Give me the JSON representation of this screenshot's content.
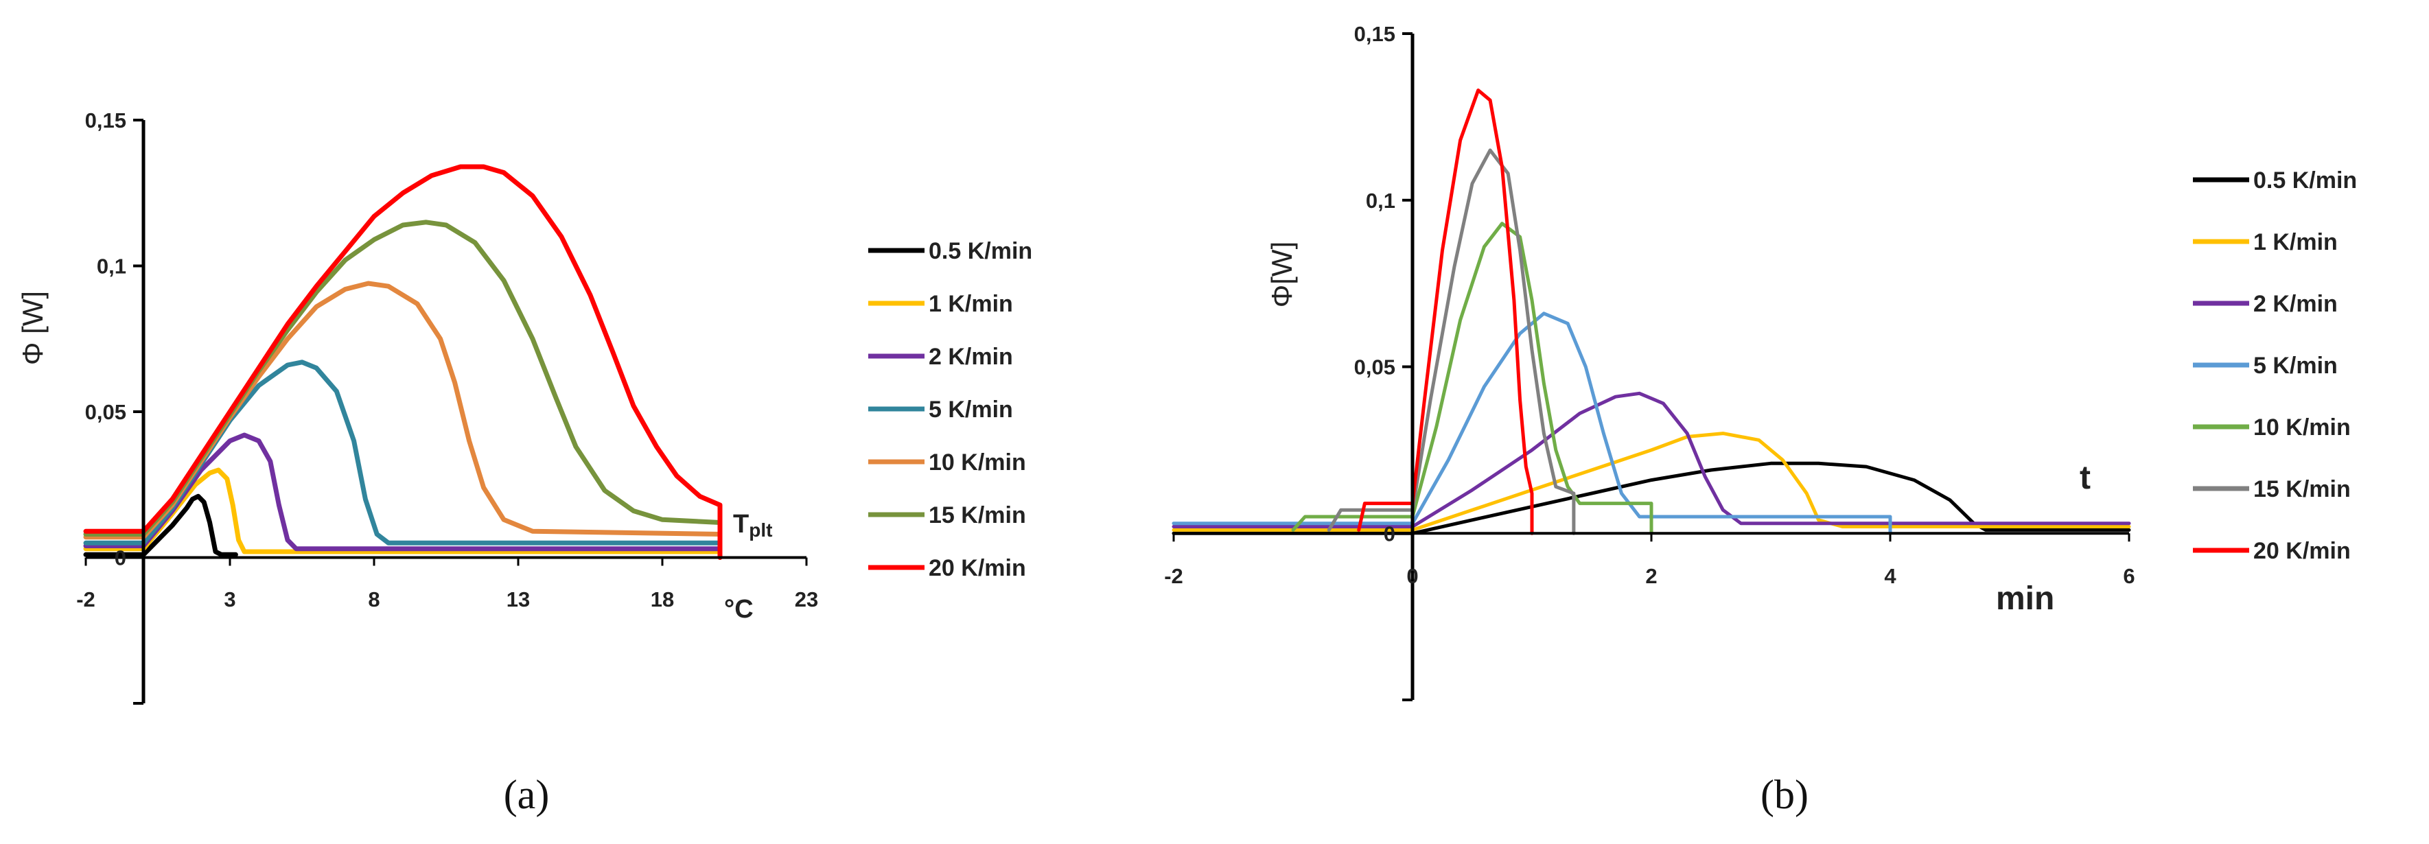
{
  "chart_data": [
    {
      "id": "a",
      "type": "line",
      "caption": "(a)",
      "ylabel": "Φ [W]",
      "xunit": "°C",
      "annotation": "T",
      "annotation_sub": "plt",
      "xlim": [
        -2,
        23
      ],
      "ylim": [
        -0.05,
        0.15
      ],
      "xticks": [
        -2,
        3,
        8,
        13,
        18,
        23
      ],
      "xtick_labels": [
        "-2",
        "3",
        "8",
        "13",
        "18",
        "23"
      ],
      "yticks": [
        0,
        0.05,
        0.1,
        0.15
      ],
      "ytick_labels": [
        "0",
        "0,05",
        "0,1",
        "0,15"
      ],
      "legend_position": "right",
      "series": [
        {
          "name": "0.5 K/min",
          "color": "#000000",
          "points": [
            [
              -2,
              0.001
            ],
            [
              0,
              0.001
            ],
            [
              0.5,
              0.006
            ],
            [
              1,
              0.011
            ],
            [
              1.5,
              0.017
            ],
            [
              1.7,
              0.02
            ],
            [
              1.9,
              0.021
            ],
            [
              2.1,
              0.019
            ],
            [
              2.3,
              0.012
            ],
            [
              2.5,
              0.002
            ],
            [
              2.7,
              0.001
            ],
            [
              3.2,
              0.001
            ]
          ]
        },
        {
          "name": "1 K/min",
          "color": "#FFC000",
          "points": [
            [
              -2,
              0.003
            ],
            [
              0,
              0.003
            ],
            [
              1,
              0.015
            ],
            [
              1.8,
              0.025
            ],
            [
              2.3,
              0.029
            ],
            [
              2.6,
              0.03
            ],
            [
              2.9,
              0.027
            ],
            [
              3.1,
              0.018
            ],
            [
              3.3,
              0.006
            ],
            [
              3.5,
              0.002
            ],
            [
              20,
              0.002
            ]
          ]
        },
        {
          "name": "2 K/min",
          "color": "#7030A0",
          "points": [
            [
              -2,
              0.004
            ],
            [
              0,
              0.004
            ],
            [
              1,
              0.016
            ],
            [
              2,
              0.03
            ],
            [
              3,
              0.04
            ],
            [
              3.5,
              0.042
            ],
            [
              4,
              0.04
            ],
            [
              4.4,
              0.033
            ],
            [
              4.7,
              0.018
            ],
            [
              5,
              0.006
            ],
            [
              5.3,
              0.003
            ],
            [
              20,
              0.003
            ]
          ]
        },
        {
          "name": "5 K/min",
          "color": "#31859C",
          "points": [
            [
              -2,
              0.005
            ],
            [
              0,
              0.005
            ],
            [
              1,
              0.017
            ],
            [
              2,
              0.032
            ],
            [
              3,
              0.047
            ],
            [
              4,
              0.059
            ],
            [
              5,
              0.066
            ],
            [
              5.5,
              0.067
            ],
            [
              6,
              0.065
            ],
            [
              6.7,
              0.057
            ],
            [
              7.3,
              0.04
            ],
            [
              7.7,
              0.02
            ],
            [
              8.1,
              0.008
            ],
            [
              8.5,
              0.005
            ],
            [
              20,
              0.005
            ]
          ]
        },
        {
          "name": "10 K/min",
          "color": "#E3873E",
          "points": [
            [
              -2,
              0.007
            ],
            [
              0,
              0.007
            ],
            [
              1,
              0.018
            ],
            [
              2,
              0.033
            ],
            [
              3,
              0.048
            ],
            [
              4,
              0.062
            ],
            [
              5,
              0.075
            ],
            [
              6,
              0.086
            ],
            [
              7,
              0.092
            ],
            [
              7.8,
              0.094
            ],
            [
              8.5,
              0.093
            ],
            [
              9.5,
              0.087
            ],
            [
              10.3,
              0.075
            ],
            [
              10.8,
              0.06
            ],
            [
              11.3,
              0.04
            ],
            [
              11.8,
              0.024
            ],
            [
              12.5,
              0.013
            ],
            [
              13.5,
              0.009
            ],
            [
              20,
              0.008
            ]
          ]
        },
        {
          "name": "15 K/min",
          "color": "#77933C",
          "points": [
            [
              -2,
              0.008
            ],
            [
              0,
              0.008
            ],
            [
              1,
              0.019
            ],
            [
              2,
              0.034
            ],
            [
              3,
              0.049
            ],
            [
              4,
              0.064
            ],
            [
              5,
              0.078
            ],
            [
              6,
              0.091
            ],
            [
              7,
              0.102
            ],
            [
              8,
              0.109
            ],
            [
              9,
              0.114
            ],
            [
              9.8,
              0.115
            ],
            [
              10.5,
              0.114
            ],
            [
              11.5,
              0.108
            ],
            [
              12.5,
              0.095
            ],
            [
              13.5,
              0.075
            ],
            [
              14.3,
              0.055
            ],
            [
              15,
              0.038
            ],
            [
              16,
              0.023
            ],
            [
              17,
              0.016
            ],
            [
              18,
              0.013
            ],
            [
              20,
              0.012
            ]
          ]
        },
        {
          "name": "20 K/min",
          "color": "#FF0000",
          "points": [
            [
              -2,
              0.009
            ],
            [
              0,
              0.009
            ],
            [
              1,
              0.02
            ],
            [
              2,
              0.035
            ],
            [
              3,
              0.05
            ],
            [
              4,
              0.065
            ],
            [
              5,
              0.08
            ],
            [
              6,
              0.093
            ],
            [
              7,
              0.105
            ],
            [
              8,
              0.117
            ],
            [
              9,
              0.125
            ],
            [
              10,
              0.131
            ],
            [
              11,
              0.134
            ],
            [
              11.8,
              0.134
            ],
            [
              12.5,
              0.132
            ],
            [
              13.5,
              0.124
            ],
            [
              14.5,
              0.11
            ],
            [
              15.5,
              0.09
            ],
            [
              16.3,
              0.07
            ],
            [
              17,
              0.052
            ],
            [
              17.8,
              0.038
            ],
            [
              18.5,
              0.028
            ],
            [
              19.3,
              0.021
            ],
            [
              20,
              0.018
            ],
            [
              20,
              0.0
            ]
          ]
        }
      ]
    },
    {
      "id": "b",
      "type": "line",
      "caption": "(b)",
      "ylabel": "Φ[W]",
      "xunit": "min",
      "annotation": "t",
      "xlim": [
        -2,
        6
      ],
      "ylim": [
        -0.05,
        0.15
      ],
      "xticks": [
        -2,
        0,
        2,
        4,
        6
      ],
      "xtick_labels": [
        "-2",
        "0",
        "2",
        "4",
        "6"
      ],
      "yticks": [
        0,
        0.05,
        0.1,
        0.15
      ],
      "ytick_labels": [
        "0",
        "0,05",
        "0,1",
        "0,15"
      ],
      "legend_position": "right",
      "series": [
        {
          "name": "0.5 K/min",
          "color": "#000000",
          "points": [
            [
              -2,
              0
            ],
            [
              0,
              0
            ],
            [
              0.5,
              0.004
            ],
            [
              1,
              0.008
            ],
            [
              1.5,
              0.012
            ],
            [
              2,
              0.016
            ],
            [
              2.5,
              0.019
            ],
            [
              3,
              0.021
            ],
            [
              3.4,
              0.021
            ],
            [
              3.8,
              0.02
            ],
            [
              4.2,
              0.016
            ],
            [
              4.5,
              0.01
            ],
            [
              4.7,
              0.003
            ],
            [
              4.8,
              0.001
            ],
            [
              6,
              0.001
            ]
          ]
        },
        {
          "name": "1 K/min",
          "color": "#FFC000",
          "points": [
            [
              -2,
              0.001
            ],
            [
              0,
              0.001
            ],
            [
              0.5,
              0.007
            ],
            [
              1,
              0.013
            ],
            [
              1.5,
              0.019
            ],
            [
              2,
              0.025
            ],
            [
              2.3,
              0.029
            ],
            [
              2.6,
              0.03
            ],
            [
              2.9,
              0.028
            ],
            [
              3.1,
              0.022
            ],
            [
              3.3,
              0.012
            ],
            [
              3.4,
              0.004
            ],
            [
              3.6,
              0.002
            ],
            [
              6,
              0.002
            ]
          ]
        },
        {
          "name": "2 K/min",
          "color": "#7030A0",
          "points": [
            [
              -2,
              0.002
            ],
            [
              0,
              0.002
            ],
            [
              0.5,
              0.013
            ],
            [
              1,
              0.025
            ],
            [
              1.4,
              0.036
            ],
            [
              1.7,
              0.041
            ],
            [
              1.9,
              0.042
            ],
            [
              2.1,
              0.039
            ],
            [
              2.3,
              0.03
            ],
            [
              2.45,
              0.017
            ],
            [
              2.6,
              0.007
            ],
            [
              2.75,
              0.003
            ],
            [
              6,
              0.003
            ]
          ]
        },
        {
          "name": "5 K/min",
          "color": "#5B9BD5",
          "points": [
            [
              -2,
              0.003
            ],
            [
              0,
              0.003
            ],
            [
              0.3,
              0.022
            ],
            [
              0.6,
              0.044
            ],
            [
              0.9,
              0.06
            ],
            [
              1.1,
              0.066
            ],
            [
              1.3,
              0.063
            ],
            [
              1.45,
              0.05
            ],
            [
              1.6,
              0.03
            ],
            [
              1.75,
              0.012
            ],
            [
              1.9,
              0.005
            ],
            [
              4,
              0.005
            ],
            [
              4,
              0.0
            ]
          ]
        },
        {
          "name": "10 K/min",
          "color": "#70AD47",
          "points": [
            [
              -1,
              0.001
            ],
            [
              -0.9,
              0.005
            ],
            [
              0,
              0.005
            ],
            [
              0.2,
              0.032
            ],
            [
              0.4,
              0.064
            ],
            [
              0.6,
              0.086
            ],
            [
              0.75,
              0.093
            ],
            [
              0.9,
              0.089
            ],
            [
              1,
              0.07
            ],
            [
              1.1,
              0.045
            ],
            [
              1.2,
              0.025
            ],
            [
              1.3,
              0.014
            ],
            [
              1.4,
              0.009
            ],
            [
              2,
              0.009
            ],
            [
              2,
              0.0
            ]
          ]
        },
        {
          "name": "15 K/min",
          "color": "#808080",
          "points": [
            [
              -0.7,
              0.001
            ],
            [
              -0.6,
              0.007
            ],
            [
              0,
              0.007
            ],
            [
              0.15,
              0.04
            ],
            [
              0.35,
              0.08
            ],
            [
              0.5,
              0.105
            ],
            [
              0.65,
              0.115
            ],
            [
              0.8,
              0.108
            ],
            [
              0.9,
              0.085
            ],
            [
              1,
              0.055
            ],
            [
              1.1,
              0.03
            ],
            [
              1.2,
              0.014
            ],
            [
              1.35,
              0.012
            ],
            [
              1.35,
              0.0
            ]
          ]
        },
        {
          "name": "20 K/min",
          "color": "#FF0000",
          "points": [
            [
              -0.45,
              0.001
            ],
            [
              -0.4,
              0.009
            ],
            [
              0,
              0.009
            ],
            [
              0.1,
              0.04
            ],
            [
              0.25,
              0.085
            ],
            [
              0.4,
              0.118
            ],
            [
              0.55,
              0.133
            ],
            [
              0.65,
              0.13
            ],
            [
              0.75,
              0.11
            ],
            [
              0.85,
              0.07
            ],
            [
              0.9,
              0.04
            ],
            [
              0.95,
              0.02
            ],
            [
              1,
              0.012
            ],
            [
              1,
              0.0
            ]
          ]
        }
      ]
    }
  ]
}
